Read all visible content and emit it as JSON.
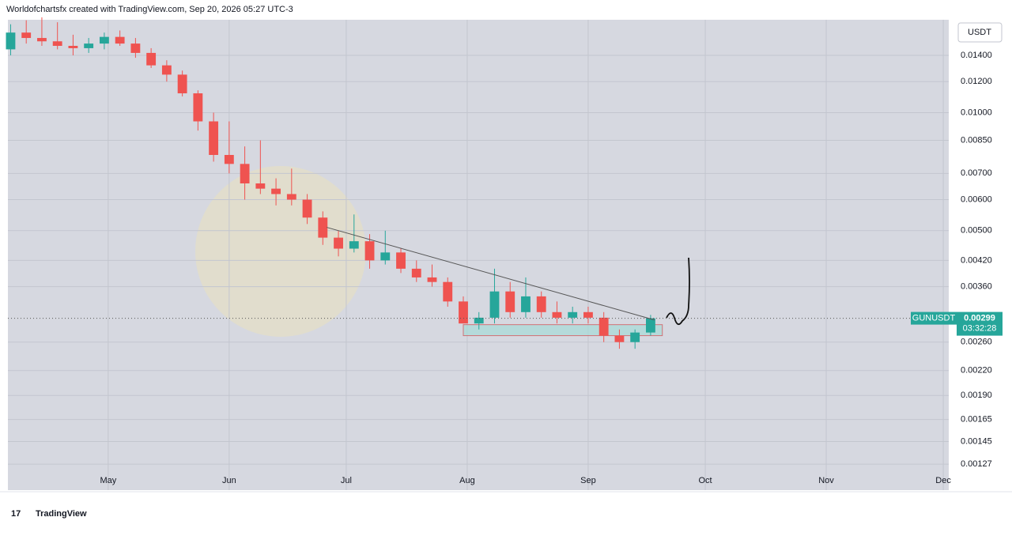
{
  "header": {
    "credit": "Worldofchartsfx created with TradingView.com, Sep 20, 2026 05:27 UTC-3"
  },
  "chart_data": {
    "type": "candlestick",
    "x": [
      96,
      100,
      104,
      108,
      112,
      116,
      120,
      124,
      128,
      132,
      136,
      140,
      144,
      148,
      152,
      156,
      160,
      164,
      168,
      172,
      176,
      180,
      184,
      188,
      192,
      196,
      200,
      204,
      208,
      212,
      216,
      220,
      224,
      228,
      232,
      236,
      240,
      244,
      248,
      252,
      256,
      260
    ],
    "open": [
      0.0145,
      0.016,
      0.0155,
      0.0152,
      0.0148,
      0.0146,
      0.015,
      0.0156,
      0.015,
      0.0142,
      0.0132,
      0.0125,
      0.0112,
      0.0095,
      0.0078,
      0.0074,
      0.0066,
      0.0064,
      0.0062,
      0.006,
      0.0054,
      0.0048,
      0.0045,
      0.0047,
      0.0042,
      0.0044,
      0.004,
      0.0038,
      0.0037,
      0.0033,
      0.0029,
      0.003,
      0.0035,
      0.0031,
      0.0034,
      0.0031,
      0.003,
      0.0031,
      0.003,
      0.0027,
      0.0026,
      0.00275
    ],
    "high": [
      0.0168,
      0.0172,
      0.0175,
      0.017,
      0.0158,
      0.0155,
      0.016,
      0.0162,
      0.0155,
      0.0146,
      0.0136,
      0.0128,
      0.0114,
      0.01,
      0.0095,
      0.0082,
      0.0085,
      0.0068,
      0.0072,
      0.0062,
      0.0056,
      0.005,
      0.0055,
      0.0049,
      0.005,
      0.0045,
      0.0042,
      0.0041,
      0.0038,
      0.0034,
      0.0031,
      0.004,
      0.0037,
      0.0038,
      0.0035,
      0.0033,
      0.0032,
      0.0032,
      0.0031,
      0.0028,
      0.0028,
      0.00305
    ],
    "low": [
      0.014,
      0.015,
      0.0148,
      0.0145,
      0.014,
      0.0142,
      0.0145,
      0.0148,
      0.0138,
      0.013,
      0.012,
      0.011,
      0.009,
      0.0075,
      0.007,
      0.006,
      0.0062,
      0.0058,
      0.0058,
      0.0052,
      0.0046,
      0.0043,
      0.0044,
      0.004,
      0.0041,
      0.0039,
      0.0037,
      0.0036,
      0.0032,
      0.0029,
      0.0028,
      0.0029,
      0.003,
      0.003,
      0.003,
      0.0029,
      0.0029,
      0.0029,
      0.0026,
      0.0025,
      0.0025,
      0.0027
    ],
    "close": [
      0.016,
      0.0155,
      0.0152,
      0.0148,
      0.0146,
      0.015,
      0.0156,
      0.015,
      0.0142,
      0.0132,
      0.0125,
      0.0112,
      0.0095,
      0.0078,
      0.0074,
      0.0066,
      0.0064,
      0.0062,
      0.006,
      0.0054,
      0.0048,
      0.0045,
      0.0047,
      0.0042,
      0.0044,
      0.004,
      0.0038,
      0.0037,
      0.0033,
      0.0029,
      0.003,
      0.0035,
      0.0031,
      0.0034,
      0.0031,
      0.003,
      0.0031,
      0.003,
      0.0027,
      0.0026,
      0.00275,
      0.00299
    ],
    "up_color": "#26a69a",
    "down_color": "#ef5350",
    "xlim": [
      95.3,
      336.4
    ],
    "xticks": [
      {
        "value": 121,
        "label": "May"
      },
      {
        "value": 152,
        "label": "Jun"
      },
      {
        "value": 182,
        "label": "Jul"
      },
      {
        "value": 213,
        "label": "Aug"
      },
      {
        "value": 244,
        "label": "Sep"
      },
      {
        "value": 274,
        "label": "Oct"
      },
      {
        "value": 305,
        "label": "Nov"
      },
      {
        "value": 335,
        "label": "Dec"
      }
    ],
    "ylim": [
      0.00109,
      0.01725
    ],
    "log_y": true,
    "grid": true,
    "yticks": [
      {
        "value": 0.014,
        "label": "0.01400"
      },
      {
        "value": 0.012,
        "label": "0.01200"
      },
      {
        "value": 0.01,
        "label": "0.01000"
      },
      {
        "value": 0.0085,
        "label": "0.00850"
      },
      {
        "value": 0.007,
        "label": "0.00700"
      },
      {
        "value": 0.006,
        "label": "0.00600"
      },
      {
        "value": 0.005,
        "label": "0.00500"
      },
      {
        "value": 0.0042,
        "label": "0.00420"
      },
      {
        "value": 0.0036,
        "label": "0.00360"
      },
      {
        "value": 0.0026,
        "label": "0.00260"
      },
      {
        "value": 0.0022,
        "label": "0.00220"
      },
      {
        "value": 0.0019,
        "label": "0.00190"
      },
      {
        "value": 0.00165,
        "label": "0.00165"
      },
      {
        "value": 0.00145,
        "label": "0.00145"
      },
      {
        "value": 0.00127,
        "label": "0.00127"
      }
    ],
    "currency": "USDT",
    "symbol": "GUNUSDT",
    "last_price": 0.00299,
    "countdown": "03:32:28",
    "trendline": {
      "x": [
        177,
        261
      ],
      "y": [
        0.0051,
        0.00296
      ]
    },
    "range_box": {
      "x": [
        212,
        263
      ],
      "y": [
        0.0027,
        0.00288
      ]
    }
  },
  "footer": {
    "brand": "TradingView"
  }
}
